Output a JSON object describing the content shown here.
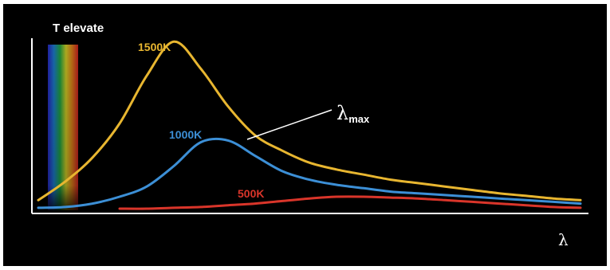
{
  "chart_data": {
    "type": "line",
    "annotation_top": "T elevate",
    "xlabel": "λ",
    "peak_label": "λ",
    "peak_label_sub": "max",
    "x": [
      0,
      5,
      10,
      15,
      20,
      25,
      30,
      35,
      40,
      45,
      50,
      55,
      60,
      65,
      70,
      75,
      80,
      85,
      90,
      95,
      100
    ],
    "series": [
      {
        "name": "1500K",
        "color": "#e8b630",
        "values": [
          0.05,
          0.16,
          0.3,
          0.5,
          0.78,
          0.98,
          0.82,
          0.6,
          0.43,
          0.34,
          0.27,
          0.23,
          0.2,
          0.17,
          0.15,
          0.13,
          0.11,
          0.09,
          0.075,
          0.06,
          0.05
        ]
      },
      {
        "name": "1000K",
        "color": "#3c8fd6",
        "values": [
          0.005,
          0.01,
          0.03,
          0.07,
          0.13,
          0.25,
          0.39,
          0.4,
          0.31,
          0.22,
          0.17,
          0.14,
          0.12,
          0.1,
          0.09,
          0.08,
          0.07,
          0.06,
          0.05,
          0.04,
          0.03
        ]
      },
      {
        "name": "500K",
        "color": "#d9352a",
        "values": [
          null,
          null,
          null,
          0.0,
          0.0,
          0.005,
          0.01,
          0.02,
          0.03,
          0.045,
          0.06,
          0.07,
          0.07,
          0.065,
          0.06,
          0.05,
          0.04,
          0.03,
          0.02,
          0.01,
          0.005
        ]
      }
    ],
    "ylim": [
      0,
      1
    ],
    "xlim": [
      0,
      100
    ],
    "grid": false,
    "legend": "none"
  }
}
